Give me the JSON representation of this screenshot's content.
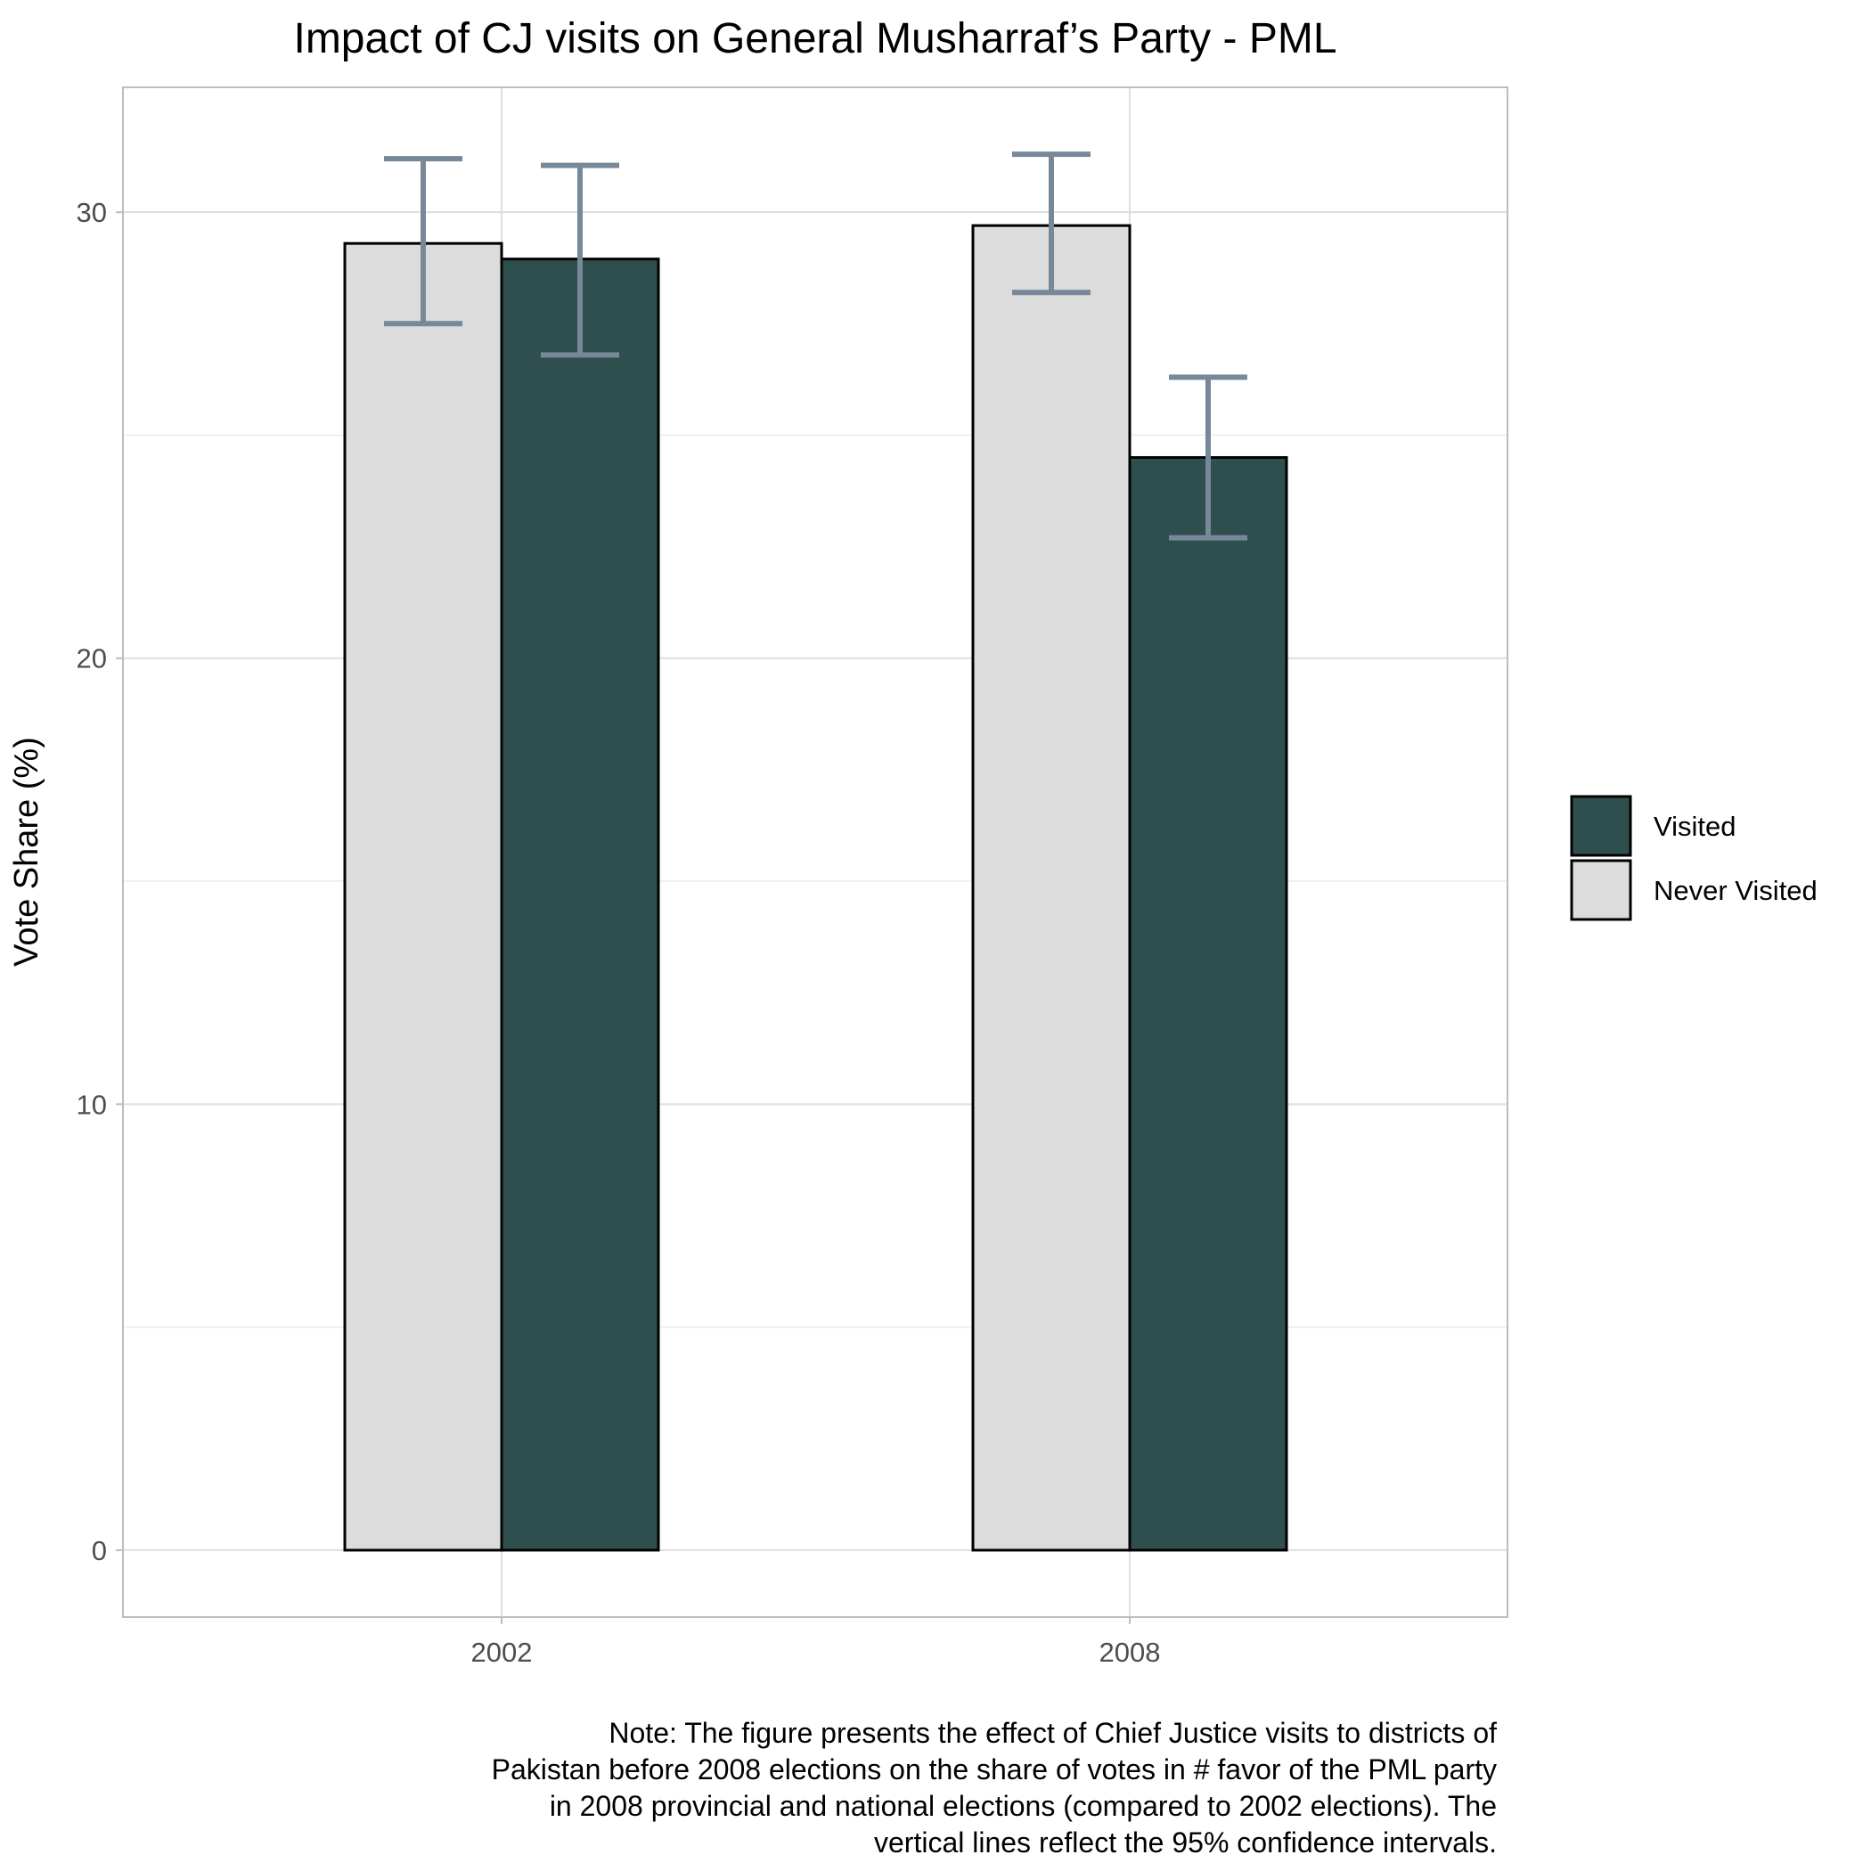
{
  "chart_data": {
    "type": "bar",
    "title": "Impact of CJ visits on General Musharraf’s Party - PML",
    "xlabel": "",
    "ylabel": "Vote Share (%)",
    "categories": [
      "2002",
      "2008"
    ],
    "ylim": [
      -1.5,
      32.8
    ],
    "yticks": [
      0,
      10,
      20,
      30
    ],
    "grid": true,
    "legend_position": "right",
    "series": [
      {
        "name": "Never Visited",
        "color": "#dcdcdc",
        "values": [
          29.3,
          29.7
        ],
        "ci_low": [
          27.5,
          28.2
        ],
        "ci_high": [
          31.2,
          31.3
        ]
      },
      {
        "name": "Visited",
        "color": "#2f4f4f",
        "values": [
          28.95,
          24.5
        ],
        "ci_low": [
          26.8,
          22.7
        ],
        "ci_high": [
          31.05,
          26.3
        ]
      }
    ],
    "legend_order": [
      "Visited",
      "Never Visited"
    ],
    "errorbar_color": "#778899",
    "note": [
      "Note: The figure presents the effect of Chief Justice visits to districts of",
      "Pakistan before 2008 elections on the share of votes in # favor of the PML party",
      "in 2008 provincial and national elections (compared to 2002 elections). The",
      "vertical lines reflect the 95% confidence intervals."
    ]
  }
}
